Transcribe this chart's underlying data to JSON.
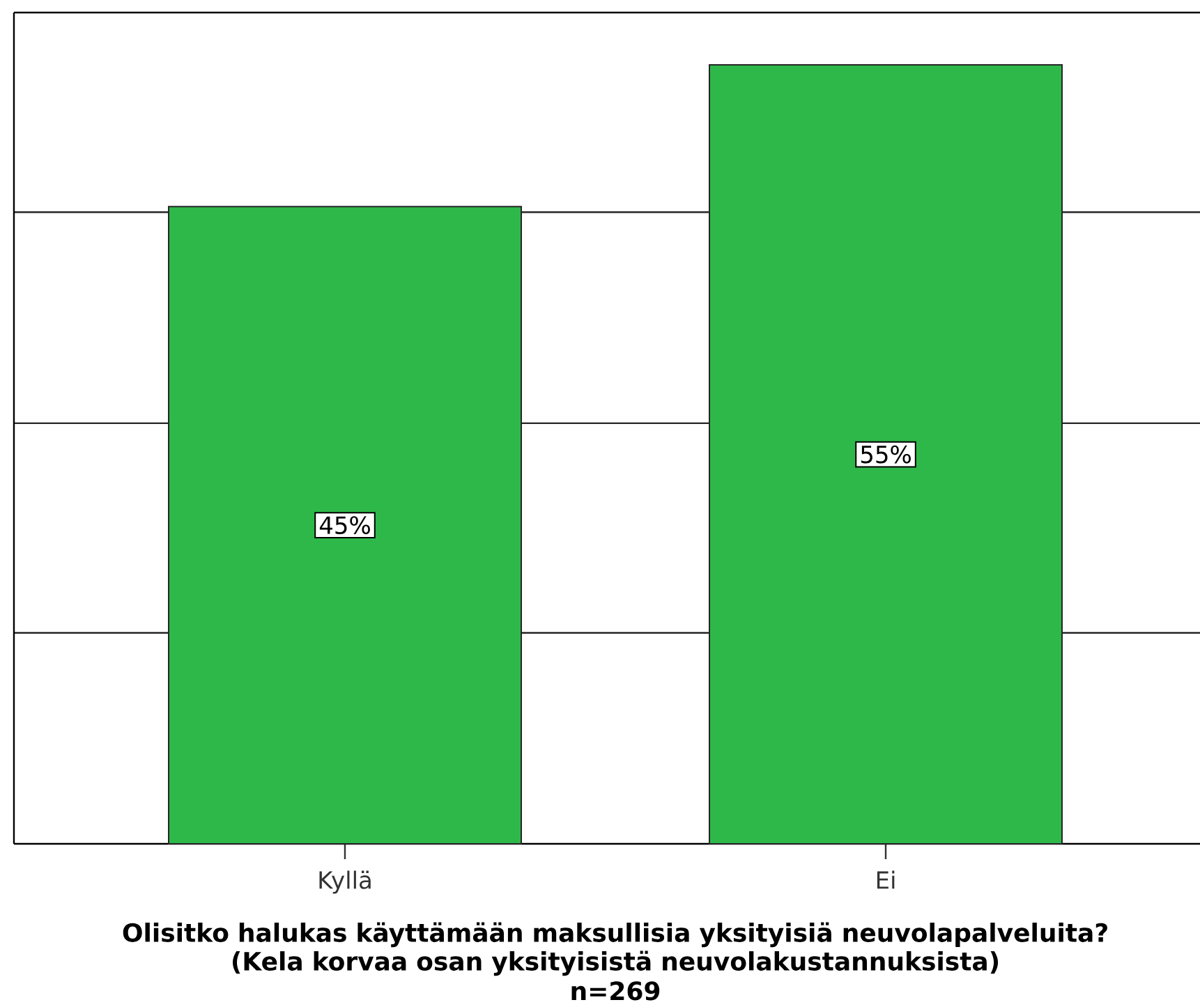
{
  "chart_data": {
    "type": "bar",
    "xlabel": "Olisitko halukas käyttämään maksullisia yksityisiä neuvolapalveluita? (Kela korvaa osan yksityisistä neuvolakustannuksista)",
    "annotations": [
      "n=269"
    ],
    "categories": [
      "Kyllä",
      "Ei"
    ],
    "values": [
      45,
      55
    ],
    "value_labels": [
      "45%",
      "55%"
    ],
    "color": "#2eb84a",
    "ylim": [
      0,
      58.7
    ],
    "yticks": [
      {
        "value": 14.9,
        "label": null
      },
      {
        "value": 29.7,
        "label": null
      },
      {
        "value": 44.6,
        "label": null
      }
    ],
    "grid": "y",
    "tick_labels": "x"
  }
}
